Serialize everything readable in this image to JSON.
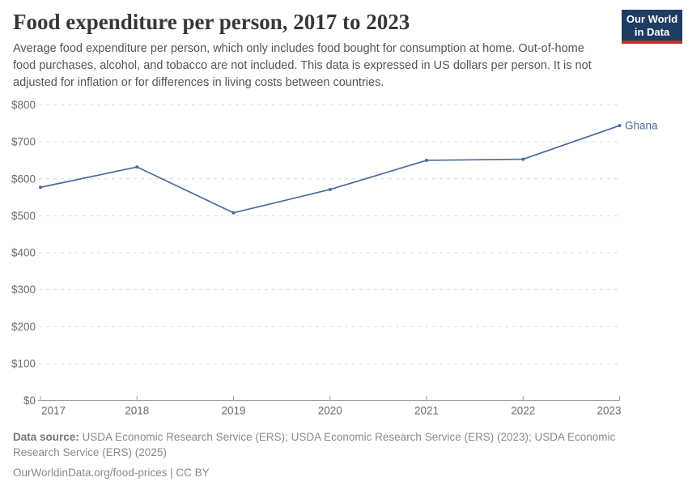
{
  "header": {
    "title": "Food expenditure per person, 2017 to 2023",
    "subtitle": "Average food expenditure per person, which only includes food bought for consumption at home. Out-of-home food purchases, alcohol, and tobacco are not included. This data is expressed in US dollars per person. It is not adjusted for inflation or for differences in living costs between countries.",
    "logo": {
      "line1": "Our World",
      "line2": "in Data"
    }
  },
  "chart_data": {
    "type": "line",
    "title": "Food expenditure per person, 2017 to 2023",
    "x": [
      2017,
      2018,
      2019,
      2020,
      2021,
      2022,
      2023
    ],
    "series": [
      {
        "name": "Ghana",
        "color": "#4C6A9C",
        "values": [
          577,
          632,
          508,
          571,
          650,
          653,
          744
        ]
      }
    ],
    "ylim": [
      0,
      800
    ],
    "ytick_step": 100,
    "ytick_prefix": "$",
    "grid": "horizontal-dashed",
    "legend_position": "end-of-line-label"
  },
  "footer": {
    "source_label": "Data source:",
    "sources": "USDA Economic Research Service (ERS); USDA Economic Research Service (ERS) (2023); USDA Economic Research Service (ERS) (2025)",
    "note": "OurWorldinData.org/food-prices | CC BY"
  },
  "colors": {
    "line": "#4C6A9C",
    "logo_bg": "#1d3d63",
    "logo_stripe": "#b8312b",
    "grid": "#d9d9d9",
    "axis": "#9e9e9e",
    "title_text": "#383636",
    "subtitle_text": "#555555",
    "footer_text": "#8a8a8a"
  }
}
